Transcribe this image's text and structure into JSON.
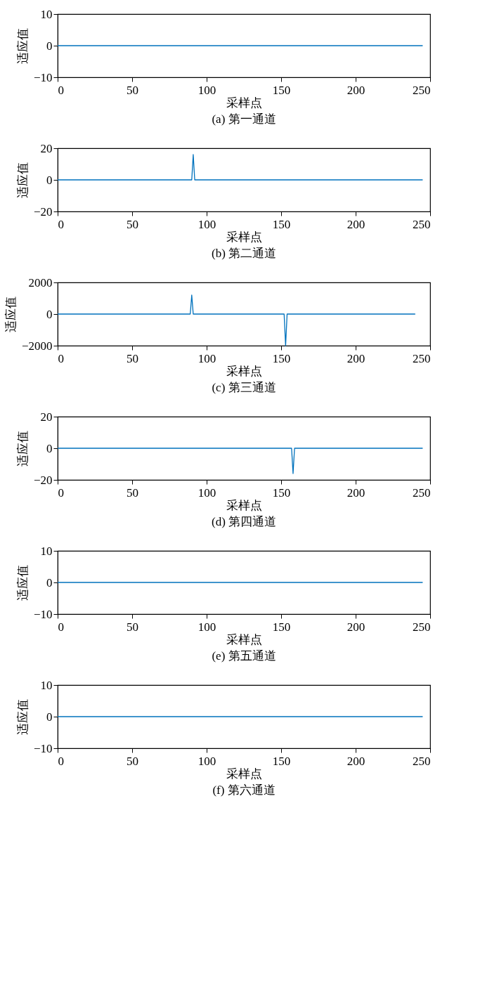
{
  "chart_data": [
    {
      "type": "line",
      "title": "(a) 第一通道",
      "xlabel": "采样点",
      "ylabel": "适应值",
      "x": [
        0,
        245
      ],
      "series": [
        {
          "color": "#0072bd",
          "values": [
            0,
            0
          ]
        }
      ],
      "xlim": [
        0,
        250
      ],
      "xticks": [
        0,
        50,
        100,
        150,
        200,
        250
      ],
      "ylim": [
        -10,
        10
      ],
      "yticks": [
        -10,
        0,
        10
      ]
    },
    {
      "type": "line",
      "title": "(b) 第二通道",
      "xlabel": "采样点",
      "ylabel": "适应值",
      "x": [
        0,
        90,
        91,
        92,
        245
      ],
      "series": [
        {
          "color": "#0072bd",
          "values": [
            0,
            0,
            16,
            0,
            0
          ]
        }
      ],
      "xlim": [
        0,
        250
      ],
      "xticks": [
        0,
        50,
        100,
        150,
        200,
        250
      ],
      "ylim": [
        -20,
        20
      ],
      "yticks": [
        -20,
        0,
        20
      ]
    },
    {
      "type": "line",
      "title": "(c) 第三通道",
      "xlabel": "采样点",
      "ylabel": "适应值",
      "x": [
        0,
        89,
        90,
        91,
        152,
        153,
        154,
        240
      ],
      "series": [
        {
          "color": "#0072bd",
          "values": [
            0,
            0,
            1200,
            0,
            0,
            -2000,
            0,
            0
          ]
        }
      ],
      "xlim": [
        0,
        250
      ],
      "xticks": [
        0,
        50,
        100,
        150,
        200,
        250
      ],
      "ylim": [
        -2000,
        2000
      ],
      "yticks": [
        -2000,
        0,
        2000
      ]
    },
    {
      "type": "line",
      "title": "(d) 第四通道",
      "xlabel": "采样点",
      "ylabel": "适应值",
      "x": [
        0,
        157,
        158,
        159,
        245
      ],
      "series": [
        {
          "color": "#0072bd",
          "values": [
            0,
            0,
            -16,
            0,
            0
          ]
        }
      ],
      "xlim": [
        0,
        250
      ],
      "xticks": [
        0,
        50,
        100,
        150,
        200,
        250
      ],
      "ylim": [
        -20,
        20
      ],
      "yticks": [
        -20,
        0,
        20
      ]
    },
    {
      "type": "line",
      "title": "(e) 第五通道",
      "xlabel": "采样点",
      "ylabel": "适应值",
      "x": [
        0,
        245
      ],
      "series": [
        {
          "color": "#0072bd",
          "values": [
            0,
            0
          ]
        }
      ],
      "xlim": [
        0,
        250
      ],
      "xticks": [
        0,
        50,
        100,
        150,
        200,
        250
      ],
      "ylim": [
        -10,
        10
      ],
      "yticks": [
        -10,
        0,
        10
      ]
    },
    {
      "type": "line",
      "title": "(f) 第六通道",
      "xlabel": "采样点",
      "ylabel": "适应值",
      "x": [
        0,
        245
      ],
      "series": [
        {
          "color": "#0072bd",
          "values": [
            0,
            0
          ]
        }
      ],
      "xlim": [
        0,
        250
      ],
      "xticks": [
        0,
        50,
        100,
        150,
        200,
        250
      ],
      "ylim": [
        -10,
        10
      ],
      "yticks": [
        -10,
        0,
        10
      ]
    }
  ]
}
